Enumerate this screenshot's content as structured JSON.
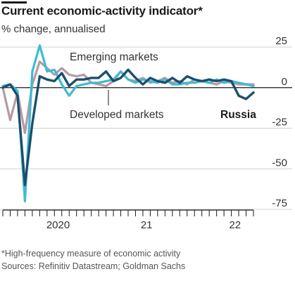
{
  "chart_data": {
    "type": "line",
    "title": "Current economic-activity indicator*",
    "subtitle": "% change, annualised",
    "ylim": [
      -75,
      25
    ],
    "yticks": [
      25,
      0,
      -25,
      -50,
      -75
    ],
    "ytick_labels": [
      "25",
      "0",
      "-25",
      "-50",
      "-75"
    ],
    "xtick_labels": [
      "2020",
      "21",
      "22"
    ],
    "grid": "horizontal",
    "series": [
      {
        "name": "Emerging markets",
        "color": "#b79aa3",
        "x": [
          0,
          1,
          2,
          3,
          4,
          5,
          6,
          7,
          8,
          9,
          10,
          11,
          12,
          13,
          14,
          15,
          16,
          17,
          18,
          19,
          20,
          21,
          22,
          23,
          24,
          25,
          26,
          27,
          28,
          29,
          30,
          31,
          32,
          33,
          34
        ],
        "y": [
          0,
          -20,
          -3,
          -28,
          2,
          16,
          12,
          8,
          12,
          8,
          7,
          8,
          3,
          2,
          1,
          4,
          10,
          5,
          4,
          6,
          3,
          4,
          6,
          3,
          4,
          2,
          5,
          4,
          3,
          2,
          4,
          3,
          2,
          2,
          2
        ]
      },
      {
        "name": "Developed markets",
        "color": "#3ebbd2",
        "x": [
          0,
          1,
          2,
          3,
          4,
          5,
          6,
          7,
          8,
          9,
          10,
          11,
          12,
          13,
          14,
          15,
          16,
          17,
          18,
          19,
          20,
          21,
          22,
          23,
          24,
          25,
          26,
          27,
          28,
          29,
          30,
          31,
          32,
          33,
          34
        ],
        "y": [
          1,
          2,
          -2,
          -70,
          10,
          26,
          10,
          11,
          2,
          -5,
          1,
          2,
          3,
          3,
          4,
          5,
          10,
          5,
          3,
          5,
          4,
          3,
          5,
          2,
          2,
          3,
          3,
          4,
          3,
          5,
          3,
          4,
          3,
          2,
          1
        ]
      },
      {
        "name": "Russia",
        "color": "#1b4f6e",
        "x": [
          0,
          1,
          2,
          3,
          4,
          5,
          6,
          7,
          8,
          9,
          10,
          11,
          12,
          13,
          14,
          15,
          16,
          17,
          18,
          19,
          20,
          21,
          22,
          23,
          24,
          25,
          26,
          27,
          28,
          29,
          30,
          31,
          32,
          33,
          34
        ],
        "y": [
          0,
          2,
          -5,
          -60,
          -22,
          7,
          5,
          4,
          9,
          1,
          5,
          5,
          6,
          6,
          10,
          4,
          6,
          11,
          6,
          2,
          6,
          4,
          3,
          6,
          3,
          7,
          5,
          4,
          5,
          4,
          5,
          4,
          -5,
          -7,
          -3
        ]
      }
    ],
    "annotations": {
      "emerging_markets": "Emerging markets",
      "developed_markets": "Developed markets",
      "russia": "Russia"
    }
  },
  "footnotes": {
    "note": "*High-frequency measure of economic activity",
    "sources": "Sources: Refinitiv Datastream; Goldman Sachs"
  }
}
